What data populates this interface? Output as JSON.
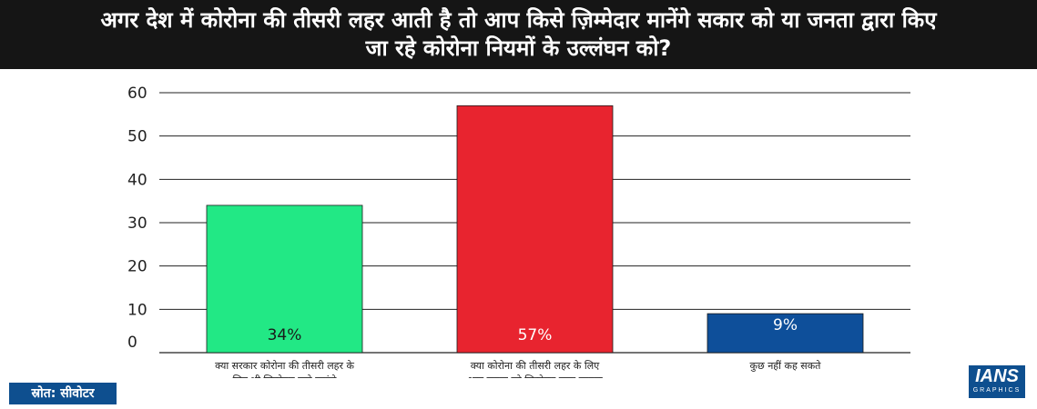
{
  "header": {
    "title_line1": "अगर देश में कोरोना की तीसरी लहर आती है तो आप किसे ज़िम्मेदार मानेंगे सकार को या जनता द्वारा किए",
    "title_line2": "जा रहे कोरोना नियमों के उल्लंघन को?"
  },
  "footer": {
    "source": "स्रोत: सीवोटर",
    "logo_text": "IANS",
    "logo_sub": "GRAPHICS"
  },
  "chart_data": {
    "type": "bar",
    "categories": [
      [
        "क्या सरकार कोरोना की तीसरी लहर के",
        "लिए भी जिम्मेदार माने जाएंगे"
      ],
      [
        "क्या कोरोना की तीसरी लहर के लिए",
        "आम जनता को जिम्मेदार माना जाएगा"
      ],
      [
        "कुछ नहीं कह सकते"
      ]
    ],
    "values": [
      34,
      57,
      9
    ],
    "data_labels": [
      "34%",
      "57%",
      "9%"
    ],
    "colors": [
      "#22e885",
      "#e8242f",
      "#0e4f9a"
    ],
    "ylim": [
      0,
      60
    ],
    "yticks": [
      0,
      10,
      20,
      30,
      40,
      50,
      60
    ],
    "grid": true,
    "legend": "none"
  }
}
